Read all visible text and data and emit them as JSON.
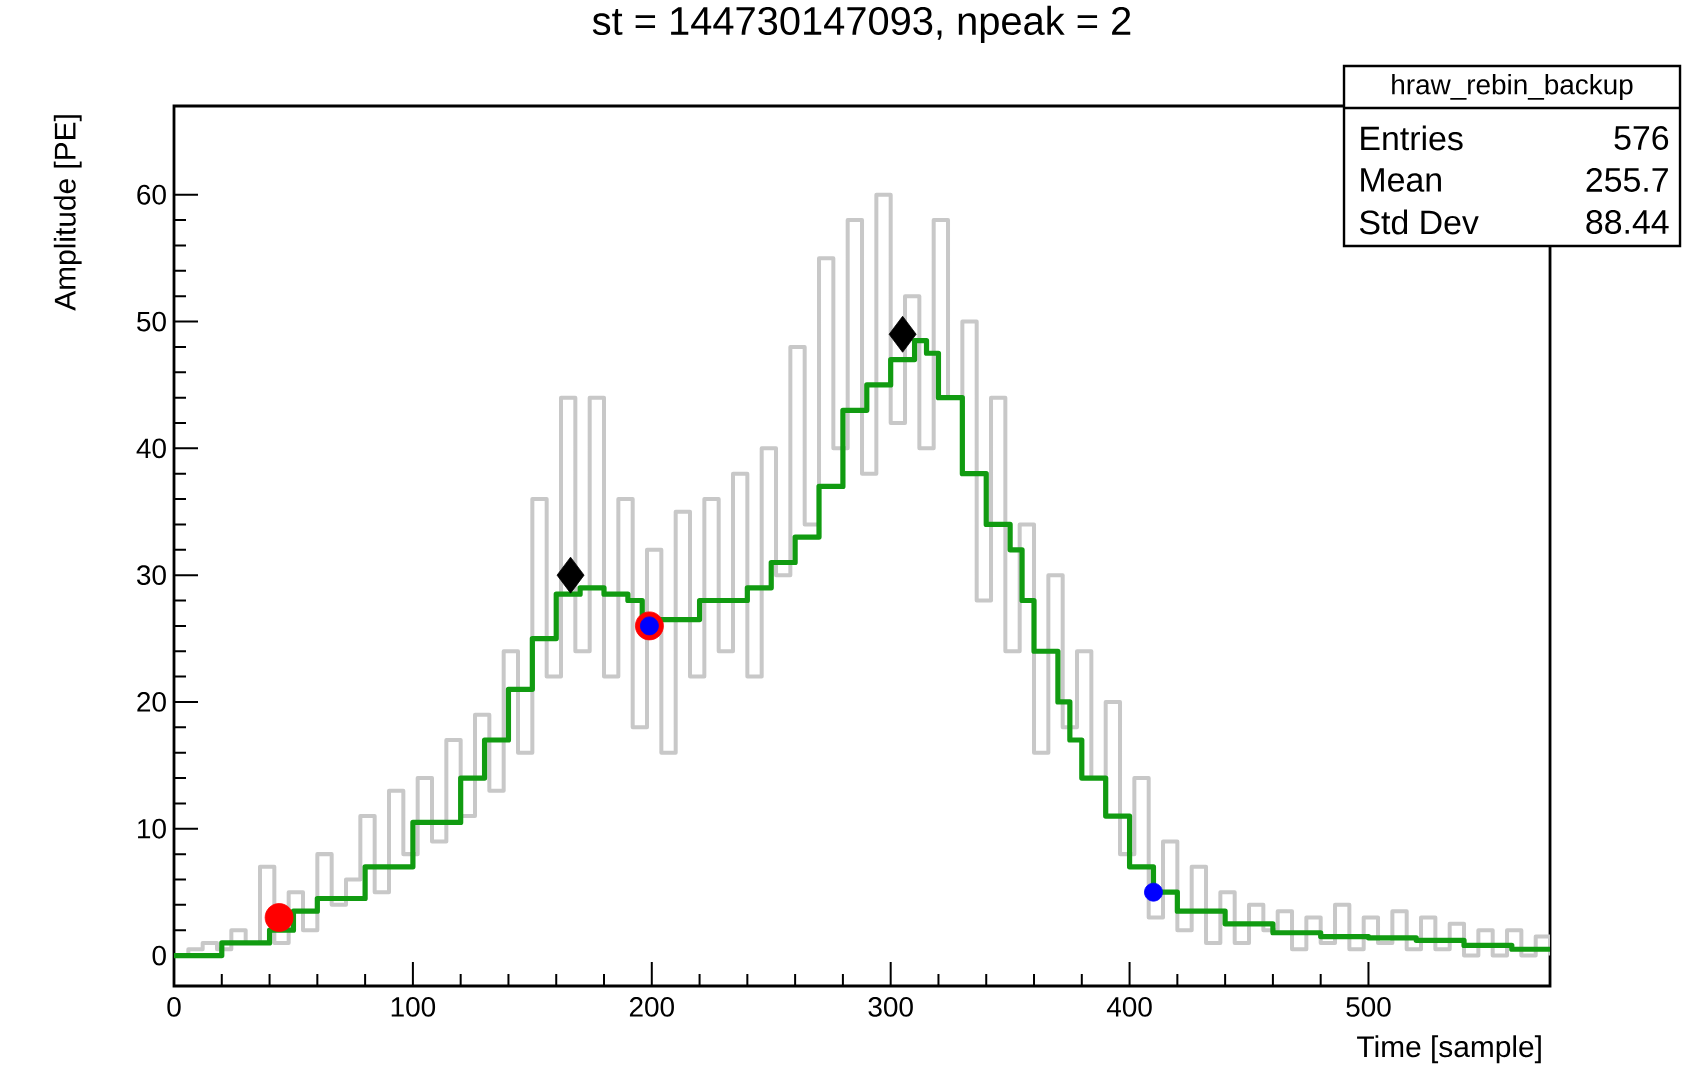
{
  "chart_data": {
    "type": "step",
    "title": "st = 144730147093, npeak = 2",
    "xlabel": "Time [sample]",
    "ylabel": "Amplitude [PE]",
    "annotations": [
      "hraw_rebin_backup",
      "Entries",
      "576",
      "Mean",
      "255.7",
      "Std Dev",
      "88.44"
    ],
    "xlim": [
      0,
      576
    ],
    "ylim": [
      -2.4,
      67
    ],
    "xticks": [
      0,
      100,
      200,
      300,
      400,
      500
    ],
    "yticks": [
      0,
      10,
      20,
      30,
      40,
      50,
      60
    ],
    "series": [
      {
        "color": "#c8c8c8",
        "x": [
          0,
          6,
          12,
          18,
          24,
          30,
          36,
          42,
          48,
          54,
          60,
          66,
          72,
          78,
          84,
          90,
          96,
          102,
          108,
          114,
          120,
          126,
          132,
          138,
          144,
          150,
          156,
          162,
          168,
          174,
          180,
          186,
          192,
          198,
          204,
          210,
          216,
          222,
          228,
          234,
          240,
          246,
          252,
          258,
          264,
          270,
          276,
          282,
          288,
          294,
          300,
          306,
          312,
          318,
          324,
          330,
          336,
          342,
          348,
          354,
          360,
          366,
          372,
          378,
          384,
          390,
          396,
          402,
          408,
          414,
          420,
          426,
          432,
          438,
          444,
          450,
          456,
          462,
          468,
          474,
          480,
          486,
          492,
          498,
          504,
          510,
          516,
          522,
          528,
          534,
          540,
          546,
          552,
          558,
          564,
          570,
          576
        ],
        "values": [
          0,
          0.5,
          1,
          0.5,
          2,
          1,
          7,
          1,
          5,
          2,
          8,
          4,
          6,
          11,
          5,
          13,
          8,
          14,
          9,
          17,
          11,
          19,
          13,
          24,
          16,
          36,
          22,
          44,
          24,
          44,
          22,
          36,
          18,
          32,
          16,
          35,
          22,
          36,
          24,
          38,
          22,
          40,
          30,
          48,
          34,
          55,
          40,
          58,
          38,
          60,
          42,
          52,
          40,
          58,
          44,
          50,
          28,
          44,
          24,
          34,
          16,
          30,
          18,
          24,
          14,
          20,
          8,
          14,
          3,
          9,
          2,
          7,
          1,
          5,
          1,
          4,
          2,
          3.5,
          0.5,
          3,
          1,
          4,
          0.5,
          3,
          1,
          3.5,
          0.5,
          3,
          0.5,
          2.5,
          0,
          2,
          0,
          2,
          0,
          1.5,
          0
        ]
      },
      {
        "color": "#119b11",
        "x": [
          0,
          20,
          40,
          50,
          60,
          80,
          100,
          120,
          130,
          140,
          150,
          160,
          170,
          180,
          190,
          196,
          200,
          220,
          240,
          250,
          260,
          270,
          280,
          290,
          300,
          310,
          315,
          320,
          330,
          340,
          350,
          355,
          360,
          370,
          375,
          380,
          390,
          400,
          410,
          420,
          440,
          460,
          480,
          500,
          520,
          540,
          560,
          576
        ],
        "values": [
          0,
          1,
          2,
          3.5,
          4.5,
          7,
          10.5,
          14,
          17,
          21,
          25,
          28.5,
          29,
          28.5,
          28,
          26,
          26.5,
          28,
          29,
          31,
          33,
          37,
          43,
          45,
          47,
          48.5,
          47.5,
          44,
          38,
          34,
          32,
          28,
          24,
          20,
          17,
          14,
          11,
          7,
          5,
          3.5,
          2.5,
          1.8,
          1.5,
          1.4,
          1.2,
          0.8,
          0.5,
          0.5
        ]
      },
      {
        "type": "scatter",
        "color": "#ff0000",
        "marker": "circle",
        "x": [
          44,
          199
        ],
        "values": [
          3,
          26
        ]
      },
      {
        "type": "scatter",
        "color": "#0000ff",
        "marker": "circle",
        "x": [
          199,
          410
        ],
        "values": [
          26,
          5
        ]
      },
      {
        "type": "scatter",
        "color": "#000000",
        "marker": "diamond",
        "x": [
          166,
          305
        ],
        "values": [
          30,
          49
        ]
      }
    ]
  }
}
